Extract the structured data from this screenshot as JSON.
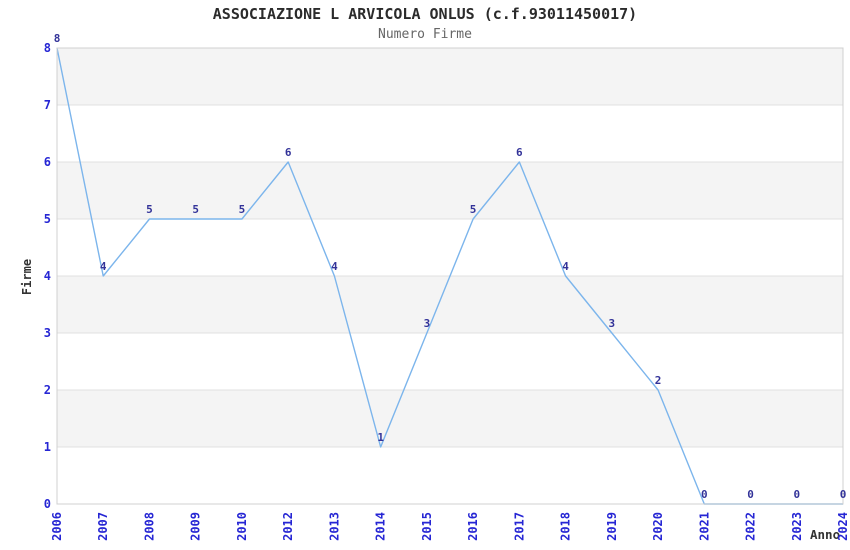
{
  "chart_data": {
    "type": "line",
    "title": "ASSOCIAZIONE L ARVICOLA ONLUS (c.f.93011450017)",
    "subtitle": "Numero Firme",
    "xlabel": "Anno",
    "ylabel": "Firme",
    "categories": [
      "2006",
      "2007",
      "2008",
      "2009",
      "2010",
      "2012",
      "2013",
      "2014",
      "2015",
      "2016",
      "2017",
      "2018",
      "2019",
      "2020",
      "2021",
      "2022",
      "2023",
      "2024"
    ],
    "series": [
      {
        "name": "Numero Firme",
        "values": [
          8,
          4,
          5,
          5,
          5,
          6,
          4,
          1,
          3,
          5,
          6,
          4,
          3,
          2,
          0,
          0,
          0,
          0
        ]
      }
    ],
    "ylim": [
      0,
      8
    ],
    "yticks": [
      0,
      1,
      2,
      3,
      4,
      5,
      6,
      7,
      8
    ],
    "data_labels_visible": true,
    "legend": "none",
    "grid": "horizontal-gridlines-with-alternating-bands",
    "markers": "none",
    "colors": {
      "line": "#7cb5ec",
      "axis_tick_label": "#2626d4",
      "point_label": "#333399",
      "band_fill": "#f4f4f4",
      "gridline": "#e0e0e0",
      "plot_border": "#d0d0d0",
      "title": "#2b2b2b",
      "subtitle": "#666666",
      "axis_title": "#333333",
      "background": "#ffffff"
    }
  }
}
